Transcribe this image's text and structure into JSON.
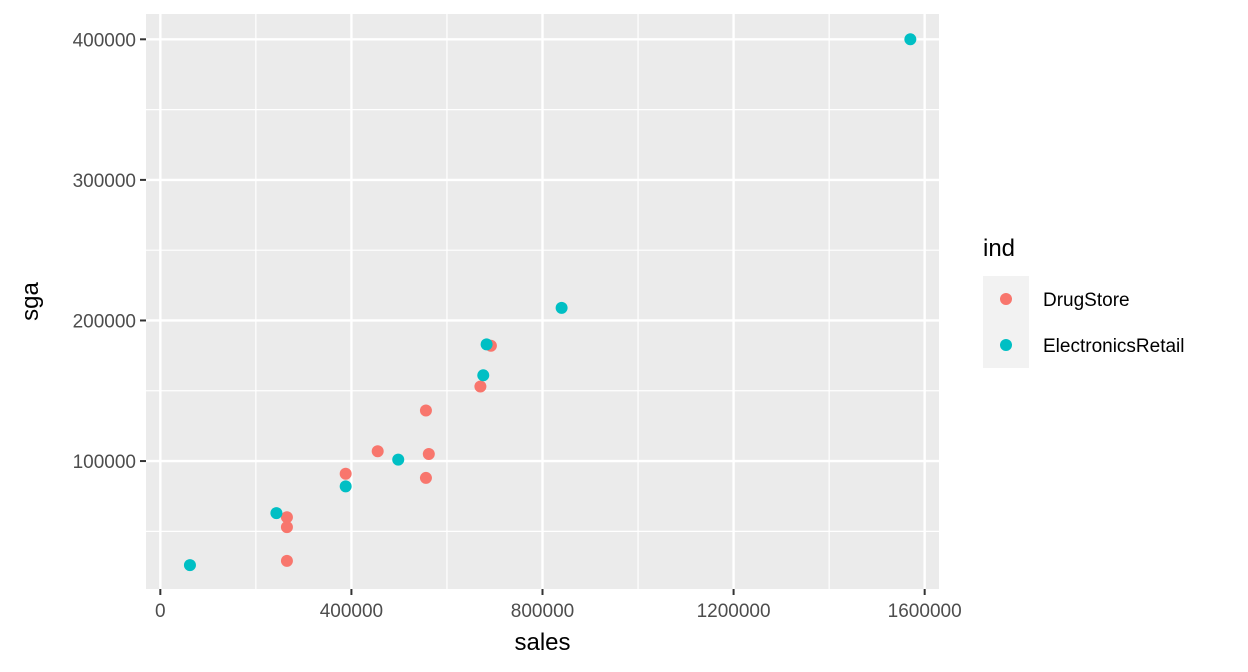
{
  "chart_data": {
    "type": "scatter",
    "title": "",
    "xlabel": "sales",
    "ylabel": "sga",
    "xlim": [
      -30000,
      1630000
    ],
    "ylim": [
      9000,
      418000
    ],
    "x_ticks": [
      0,
      400000,
      800000,
      1200000,
      1600000
    ],
    "x_tick_labels": [
      "0",
      "400000",
      "800000",
      "1200000",
      "1600000"
    ],
    "y_ticks": [
      100000,
      200000,
      300000,
      400000
    ],
    "y_tick_labels": [
      "100000",
      "200000",
      "300000",
      "400000"
    ],
    "grid": true,
    "legend": {
      "title": "ind",
      "position": "right"
    },
    "series": [
      {
        "name": "DrugStore",
        "color": "#F8766D",
        "points": [
          [
            265000,
            60000
          ],
          [
            265000,
            53000
          ],
          [
            265000,
            29000
          ],
          [
            388000,
            91000
          ],
          [
            455000,
            107000
          ],
          [
            556000,
            136000
          ],
          [
            556000,
            88000
          ],
          [
            562000,
            105000
          ],
          [
            670000,
            153000
          ],
          [
            692000,
            182000
          ]
        ]
      },
      {
        "name": "ElectronicsRetail",
        "color": "#00BFC4",
        "points": [
          [
            62000,
            26000
          ],
          [
            243000,
            63000
          ],
          [
            388000,
            82000
          ],
          [
            498000,
            101000
          ],
          [
            676000,
            161000
          ],
          [
            683000,
            183000
          ],
          [
            840000,
            209000
          ],
          [
            1570000,
            400000
          ]
        ]
      }
    ]
  }
}
